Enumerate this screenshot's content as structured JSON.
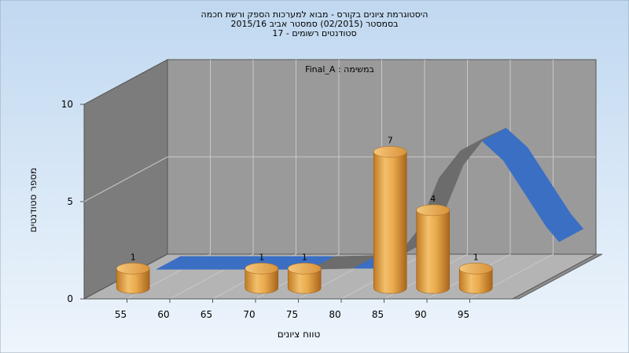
{
  "chart_data": {
    "type": "bar",
    "title_lines": [
      "היסטוגרמת ציונים בקורס - מבוא למערכות הספק ורשת חכמה",
      "בסמסטר  (02/2015)  סמסטר אביב 2015/16",
      "סטודנטים רשומים - 17"
    ],
    "annotation": "במשימה : Final_A",
    "xlabel": "טווח ציונים",
    "ylabel": "מספר סטודנטים",
    "x_ticks": [
      55,
      60,
      65,
      70,
      75,
      80,
      85,
      90,
      95
    ],
    "y_ticks": [
      0,
      5,
      10
    ],
    "ylim": [
      0,
      10
    ],
    "bars": [
      {
        "x": 55,
        "value": 1
      },
      {
        "x": 70,
        "value": 1
      },
      {
        "x": 75,
        "value": 1
      },
      {
        "x": 85,
        "value": 7
      },
      {
        "x": 90,
        "value": 4
      },
      {
        "x": 95,
        "value": 1
      }
    ],
    "curve": {
      "x": [
        40,
        45,
        50,
        55,
        60,
        65,
        70,
        75,
        77.5,
        80,
        82.5,
        85,
        87.5,
        90,
        92.5,
        95,
        97.5,
        100,
        102.5
      ],
      "y": [
        0,
        0,
        0,
        0,
        0,
        0,
        0,
        0.05,
        0.05,
        0.6,
        2.0,
        4.7,
        6.1,
        6.6,
        5.6,
        3.9,
        2.2,
        0.9,
        0
      ],
      "color": "#3a6fc4"
    },
    "grid": true,
    "three_d": true,
    "colors": {
      "bar": "#e8a94c",
      "background_top": "#c0d8f0",
      "background_bottom": "#eef5fc",
      "floor": "#b4b4b4",
      "back_wall": "#9a9a9a",
      "side_wall": "#7c7c7c"
    }
  }
}
